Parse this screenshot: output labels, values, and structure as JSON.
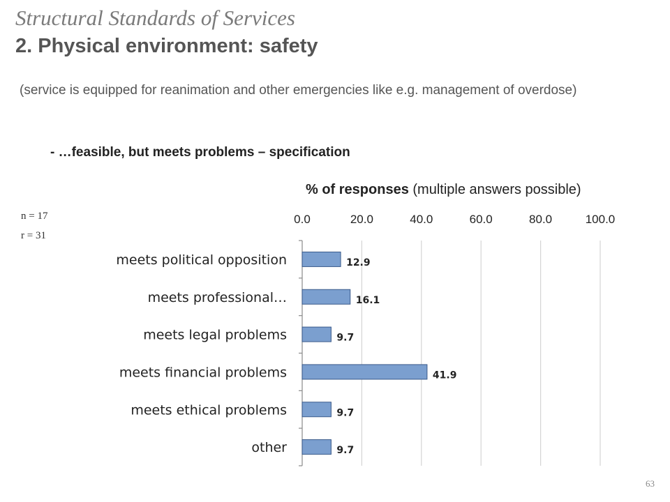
{
  "slide": {
    "title_line1": "Structural Standards of Services",
    "title_line2": "2. Physical environment: safety",
    "description": "(service is equipped for reanimation and other emergencies like e.g. management of overdose)",
    "specification": "- …feasible, but meets problems – specification",
    "n_label": "n = 17",
    "r_label": "r = 31",
    "page_number": "63"
  },
  "chart_data": {
    "type": "bar",
    "orientation": "horizontal",
    "title_bold": "% of responses",
    "title_rest": " (multiple answers possible)",
    "categories": [
      "meets political opposition",
      "meets professional…",
      "meets legal problems",
      "meets financial problems",
      "meets ethical problems",
      "other"
    ],
    "values": [
      12.9,
      16.1,
      9.7,
      41.9,
      9.7,
      9.7
    ],
    "value_labels": [
      "12.9",
      "16.1",
      "9.7",
      "41.9",
      "9.7",
      "9.7"
    ],
    "xlim": [
      0,
      100
    ],
    "ticks": [
      "0.0",
      "20.0",
      "40.0",
      "60.0",
      "80.0",
      "100.0"
    ],
    "tick_values": [
      0,
      20,
      40,
      60,
      80,
      100
    ],
    "grid": true,
    "bar_color": "#7b9fcf",
    "bar_border": "#3a5a8a"
  }
}
